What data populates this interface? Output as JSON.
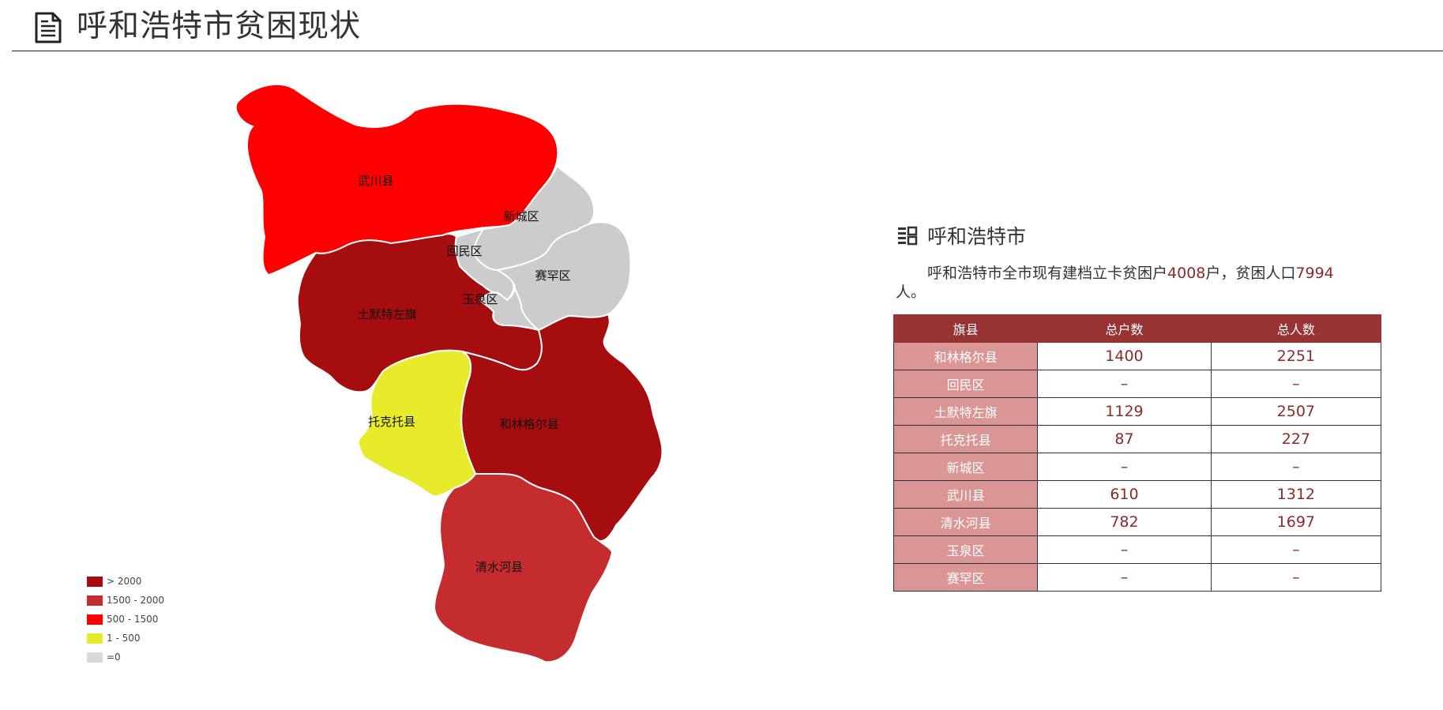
{
  "header": {
    "title": "呼和浩特市贫困现状",
    "icon": "document-icon"
  },
  "map": {
    "regions": [
      {
        "key": "wuchuan",
        "name": "武川县",
        "color": "#ff0000"
      },
      {
        "key": "xincheng",
        "name": "新城区",
        "color": "#cccccc"
      },
      {
        "key": "huimin",
        "name": "回民区",
        "color": "#cccccc"
      },
      {
        "key": "saihan",
        "name": "赛罕区",
        "color": "#cccccc"
      },
      {
        "key": "yuquan",
        "name": "玉泉区",
        "color": "#cccccc"
      },
      {
        "key": "tumote",
        "name": "土默特左旗",
        "color": "#a60d0f"
      },
      {
        "key": "tuoketuo",
        "name": "托克托县",
        "color": "#e8eb2c"
      },
      {
        "key": "helin",
        "name": "和林格尔县",
        "color": "#a60d0f"
      },
      {
        "key": "qingshuihe",
        "name": "清水河县",
        "color": "#c42c2e"
      }
    ]
  },
  "legend": {
    "items": [
      {
        "label": "> 2000",
        "color": "#a60d0f"
      },
      {
        "label": "1500 - 2000",
        "color": "#c42c2e"
      },
      {
        "label": "500 - 1500",
        "color": "#ff0000"
      },
      {
        "label": "1 - 500",
        "color": "#e8eb2c"
      },
      {
        "label": "=0",
        "color": "#d9d9d9"
      }
    ]
  },
  "info": {
    "icon": "list-icon",
    "title": "呼和浩特市",
    "desc_part1": "呼和浩特市全市现有建档立卡贫困户",
    "households": "4008",
    "desc_part2": "户，贫困人口",
    "population": "7994",
    "desc_part3": "人。"
  },
  "table": {
    "headers": [
      "旗县",
      "总户数",
      "总人数"
    ],
    "rows": [
      [
        "和林格尔县",
        "1400",
        "2251"
      ],
      [
        "回民区",
        "–",
        "–"
      ],
      [
        "土默特左旗",
        "1129",
        "2507"
      ],
      [
        "托克托县",
        "87",
        "227"
      ],
      [
        "新城区",
        "–",
        "–"
      ],
      [
        "武川县",
        "610",
        "1312"
      ],
      [
        "清水河县",
        "782",
        "1697"
      ],
      [
        "玉泉区",
        "–",
        "–"
      ],
      [
        "赛罕区",
        "–",
        "–"
      ]
    ]
  },
  "colors": {
    "header_bg": "#973332",
    "name_cell_bg": "#d99694",
    "value_text": "#8b2a2a"
  }
}
